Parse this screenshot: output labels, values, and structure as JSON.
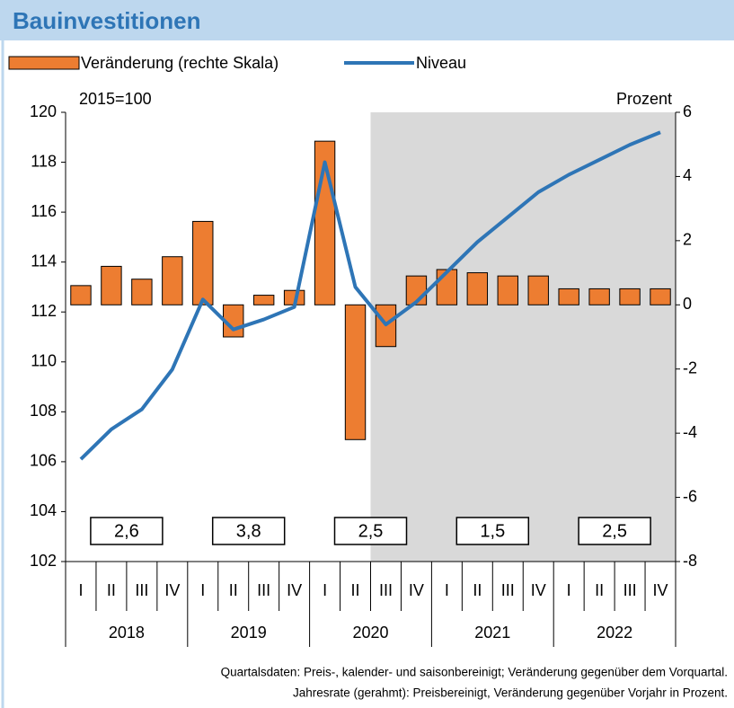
{
  "chart_data": {
    "type": "bar",
    "title": "Bauinvestitionen",
    "categories": [
      "I",
      "II",
      "III",
      "IV",
      "I",
      "II",
      "III",
      "IV",
      "I",
      "II",
      "III",
      "IV",
      "I",
      "II",
      "III",
      "IV",
      "I",
      "II",
      "III",
      "IV"
    ],
    "years": [
      "2018",
      "2019",
      "2020",
      "2021",
      "2022"
    ],
    "series": [
      {
        "name": "Veränderung (rechte Skala)",
        "type": "bar",
        "axis": "y2",
        "color": "#ed7d31",
        "values": [
          0.6,
          1.2,
          0.8,
          1.5,
          2.6,
          -1.0,
          0.3,
          0.45,
          5.1,
          -4.2,
          -1.3,
          0.9,
          1.1,
          1.0,
          0.9,
          0.9,
          0.5,
          0.5,
          0.5,
          0.5
        ]
      },
      {
        "name": "Niveau",
        "type": "line",
        "axis": "y",
        "color": "#2e75b6",
        "values": [
          106.1,
          107.3,
          108.1,
          109.7,
          112.5,
          111.3,
          111.7,
          112.2,
          118.0,
          113.0,
          111.5,
          112.4,
          113.6,
          114.8,
          115.8,
          116.8,
          117.5,
          118.1,
          118.7,
          119.2
        ]
      }
    ],
    "annual_rates": [
      "2,6",
      "3,8",
      "2,5",
      "1,5",
      "2,5"
    ],
    "y_label": "2015=100",
    "y2_label": "Prozent",
    "ylim": [
      102,
      120
    ],
    "yticks": [
      102,
      104,
      106,
      108,
      110,
      112,
      114,
      116,
      118,
      120
    ],
    "y2lim": [
      -8,
      6
    ],
    "y2ticks": [
      -8,
      -6,
      -4,
      -2,
      0,
      2,
      4,
      6
    ],
    "shade_from": 10,
    "notes": [
      "Quartalsdaten: Preis-, kalender- und saisonbereinigt; Veränderung gegenüber dem Vorquartal.",
      "Jahresrate (gerahmt): Preisbereinigt, Veränderung gegenüber Vorjahr in Prozent."
    ]
  }
}
